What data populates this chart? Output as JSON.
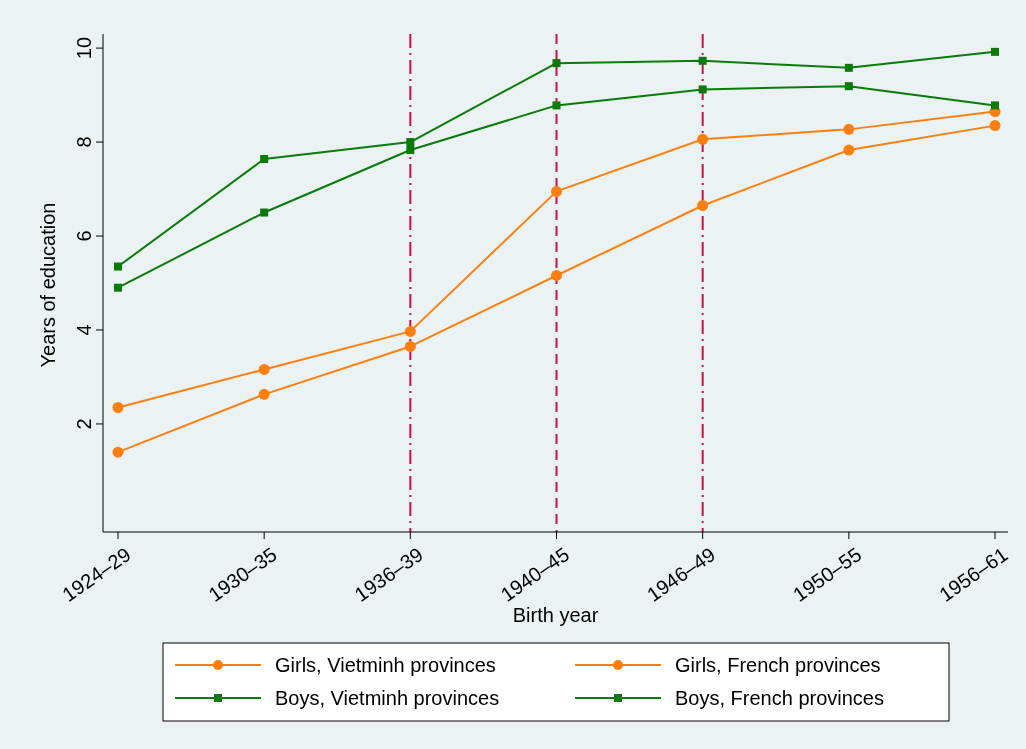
{
  "chart_data": {
    "type": "line",
    "xlabel": "Birth year",
    "ylabel": "Years of education",
    "categories": [
      "1924–29",
      "1930–35",
      "1936–39",
      "1940–45",
      "1946–49",
      "1950–55",
      "1956–61"
    ],
    "series": [
      {
        "name": "Girls, Vietminh provinces",
        "color": "#ff7f0e",
        "marker": "circle",
        "values": [
          2.35,
          3.16,
          3.97,
          6.95,
          8.06,
          8.27,
          8.65
        ]
      },
      {
        "name": "Girls, French provinces",
        "color": "#ff7f0e",
        "marker": "circle",
        "values": [
          1.4,
          2.63,
          3.65,
          5.16,
          6.65,
          7.83,
          8.35
        ]
      },
      {
        "name": "Boys, Vietminh provinces",
        "color": "#0a7a0a",
        "marker": "square",
        "values": [
          5.35,
          7.64,
          8.0,
          9.68,
          9.73,
          9.58,
          9.92
        ]
      },
      {
        "name": "Boys, French provinces",
        "color": "#0a7a0a",
        "marker": "square",
        "values": [
          4.9,
          6.5,
          7.83,
          8.78,
          9.12,
          9.19,
          8.78
        ]
      }
    ],
    "ylim": [
      -0.3,
      10.3
    ],
    "yticks": [
      2,
      4,
      6,
      8,
      10
    ],
    "ref_lines": [
      {
        "axis": "x",
        "value": "1936–39",
        "color": "#cc1040",
        "line_style": "dashdot"
      },
      {
        "axis": "x",
        "value": "1940–45",
        "color": "#cc1040",
        "line_style": "dashed"
      },
      {
        "axis": "x",
        "value": "1946–49",
        "color": "#cc1040",
        "line_style": "dashdot"
      }
    ],
    "grid": false,
    "legend": "bottom",
    "line_style": "solid"
  }
}
